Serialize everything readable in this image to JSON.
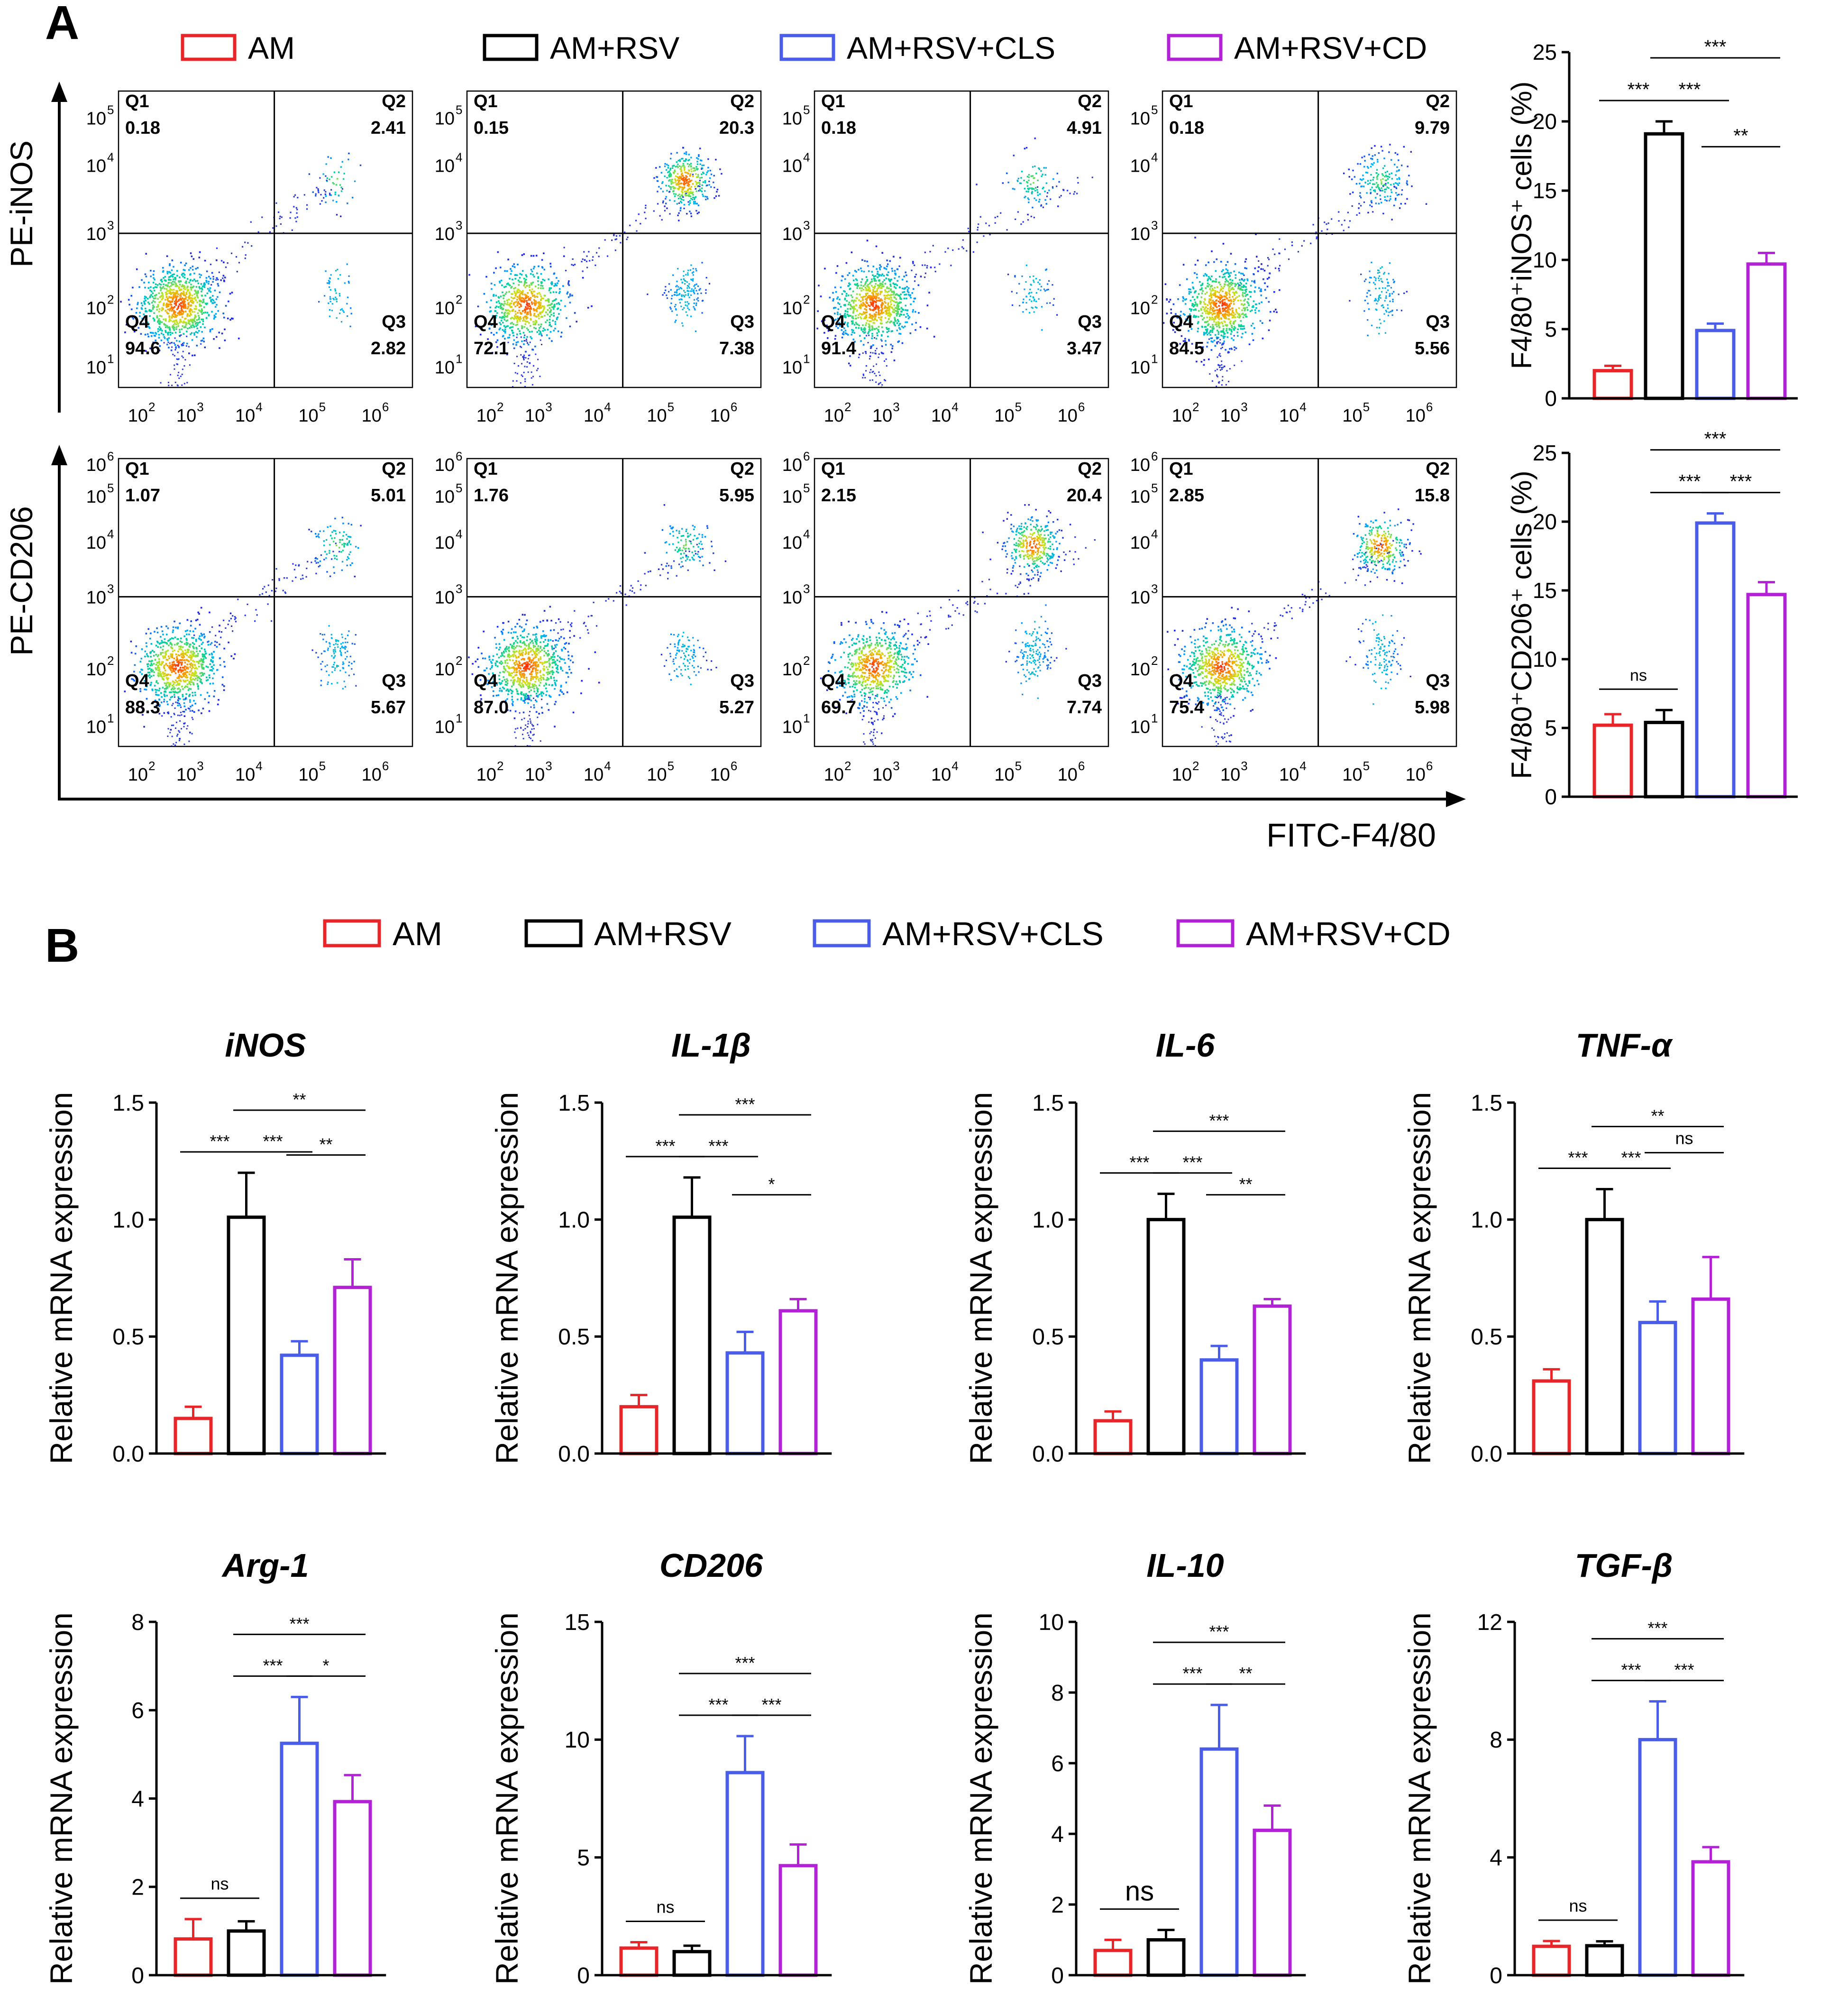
{
  "panel_a": {
    "label": "A",
    "y_axis_top": "PE-iNOS",
    "y_axis_bottom": "PE-CD206",
    "x_axis": "FITC-F4/80"
  },
  "panel_b": {
    "label": "B"
  },
  "legend": {
    "items": [
      {
        "label": "AM",
        "color": "#e8262a"
      },
      {
        "label": "AM+RSV",
        "color": "#000000"
      },
      {
        "label": "AM+RSV+CLS",
        "color": "#4a5de8"
      },
      {
        "label": "AM+RSV+CD",
        "color": "#b321d6"
      }
    ]
  },
  "flow": {
    "tick_exponents_x": [
      "2",
      "3",
      "4",
      "5",
      "6"
    ],
    "tick_exponents_y_top": [
      "1",
      "2",
      "3",
      "4",
      "5"
    ],
    "tick_exponents_y_bottom": [
      "1",
      "2",
      "3",
      "4",
      "5",
      "6"
    ],
    "rows": [
      {
        "name": "iNOS",
        "plots": [
          {
            "q1": "0.18",
            "q2": "2.41",
            "q3": "2.82",
            "q4": "94.6"
          },
          {
            "q1": "0.15",
            "q2": "20.3",
            "q3": "7.38",
            "q4": "72.1"
          },
          {
            "q1": "0.18",
            "q2": "4.91",
            "q3": "3.47",
            "q4": "91.4"
          },
          {
            "q1": "0.18",
            "q2": "9.79",
            "q3": "5.56",
            "q4": "84.5"
          }
        ]
      },
      {
        "name": "CD206",
        "plots": [
          {
            "q1": "1.07",
            "q2": "5.01",
            "q3": "5.67",
            "q4": "88.3"
          },
          {
            "q1": "1.76",
            "q2": "5.95",
            "q3": "5.27",
            "q4": "87.0"
          },
          {
            "q1": "2.15",
            "q2": "20.4",
            "q3": "7.74",
            "q4": "69.7"
          },
          {
            "q1": "2.85",
            "q2": "15.8",
            "q3": "5.98",
            "q4": "75.4"
          }
        ]
      }
    ],
    "quadrant_names": [
      "Q1",
      "Q2",
      "Q3",
      "Q4"
    ]
  },
  "chart_data": [
    {
      "id": "a-inos",
      "type": "bar",
      "title": "",
      "ylabel": "F4/80⁺iNOS⁺ cells (%)",
      "categories": [
        "AM",
        "AM+RSV",
        "AM+RSV+CLS",
        "AM+RSV+CD"
      ],
      "values": [
        2.0,
        19.1,
        4.9,
        9.7
      ],
      "errors": [
        0.35,
        0.9,
        0.5,
        0.8
      ],
      "ylim": [
        0,
        25
      ],
      "yticks": [
        "0",
        "5",
        "10",
        "15",
        "20",
        "25"
      ],
      "sig": [
        {
          "from": 0,
          "to": 1,
          "text": "***",
          "level": 0
        },
        {
          "from": 1,
          "to": 2,
          "text": "***",
          "level": 0
        },
        {
          "from": 1,
          "to": 3,
          "text": "***",
          "level": 1
        },
        {
          "from": 2,
          "to": 3,
          "text": "**",
          "level": 2
        }
      ]
    },
    {
      "id": "a-cd206",
      "type": "bar",
      "title": "",
      "ylabel": "F4/80⁺CD206⁺ cells (%)",
      "categories": [
        "AM",
        "AM+RSV",
        "AM+RSV+CLS",
        "AM+RSV+CD"
      ],
      "values": [
        5.2,
        5.4,
        19.9,
        14.7
      ],
      "errors": [
        0.8,
        0.9,
        0.7,
        0.9
      ],
      "ylim": [
        0,
        25
      ],
      "yticks": [
        "0",
        "5",
        "10",
        "15",
        "20",
        "25"
      ],
      "sig": [
        {
          "from": 0,
          "to": 1,
          "text": "ns",
          "level": 0
        },
        {
          "from": 1,
          "to": 2,
          "text": "***",
          "level": 0
        },
        {
          "from": 2,
          "to": 3,
          "text": "***",
          "level": 0
        },
        {
          "from": 1,
          "to": 3,
          "text": "***",
          "level": 1
        }
      ]
    },
    {
      "id": "b-inos",
      "type": "bar",
      "title": "iNOS",
      "ylabel": "Relative mRNA expression",
      "categories": [
        "AM",
        "AM+RSV",
        "AM+RSV+CLS",
        "AM+RSV+CD"
      ],
      "values": [
        0.15,
        1.01,
        0.42,
        0.71
      ],
      "errors": [
        0.05,
        0.19,
        0.06,
        0.12
      ],
      "ylim": [
        0,
        1.5
      ],
      "yticks": [
        "0.0",
        "0.5",
        "1.0",
        "1.5"
      ],
      "sig": [
        {
          "from": 0,
          "to": 1,
          "text": "***",
          "level": 0
        },
        {
          "from": 1,
          "to": 2,
          "text": "***",
          "level": 0
        },
        {
          "from": 1,
          "to": 3,
          "text": "**",
          "level": 1
        },
        {
          "from": 2,
          "to": 3,
          "text": "**",
          "level": 2
        }
      ]
    },
    {
      "id": "b-il1b",
      "type": "bar",
      "title": "IL-1β",
      "ylabel": "Relative mRNA expression",
      "categories": [
        "AM",
        "AM+RSV",
        "AM+RSV+CLS",
        "AM+RSV+CD"
      ],
      "values": [
        0.2,
        1.01,
        0.43,
        0.61
      ],
      "errors": [
        0.05,
        0.17,
        0.09,
        0.05
      ],
      "ylim": [
        0,
        1.5
      ],
      "yticks": [
        "0.0",
        "0.5",
        "1.0",
        "1.5"
      ],
      "sig": [
        {
          "from": 0,
          "to": 1,
          "text": "***",
          "level": 0
        },
        {
          "from": 1,
          "to": 2,
          "text": "***",
          "level": 0
        },
        {
          "from": 1,
          "to": 3,
          "text": "***",
          "level": 1
        },
        {
          "from": 2,
          "to": 3,
          "text": "*",
          "level": 2
        }
      ]
    },
    {
      "id": "b-il6",
      "type": "bar",
      "title": "IL-6",
      "ylabel": "Relative mRNA expression",
      "categories": [
        "AM",
        "AM+RSV",
        "AM+RSV+CLS",
        "AM+RSV+CD"
      ],
      "values": [
        0.14,
        1.0,
        0.4,
        0.63
      ],
      "errors": [
        0.04,
        0.11,
        0.06,
        0.03
      ],
      "ylim": [
        0,
        1.5
      ],
      "yticks": [
        "0.0",
        "0.5",
        "1.0",
        "1.5"
      ],
      "sig": [
        {
          "from": 0,
          "to": 1,
          "text": "***",
          "level": 0
        },
        {
          "from": 1,
          "to": 2,
          "text": "***",
          "level": 0
        },
        {
          "from": 1,
          "to": 3,
          "text": "***",
          "level": 1
        },
        {
          "from": 2,
          "to": 3,
          "text": "**",
          "level": 2
        }
      ]
    },
    {
      "id": "b-tnfa",
      "type": "bar",
      "title": "TNF-α",
      "ylabel": "Relative mRNA expression",
      "categories": [
        "AM",
        "AM+RSV",
        "AM+RSV+CLS",
        "AM+RSV+CD"
      ],
      "values": [
        0.31,
        1.0,
        0.56,
        0.66
      ],
      "errors": [
        0.05,
        0.13,
        0.09,
        0.18
      ],
      "ylim": [
        0,
        1.5
      ],
      "yticks": [
        "0.0",
        "0.5",
        "1.0",
        "1.5"
      ],
      "sig": [
        {
          "from": 0,
          "to": 1,
          "text": "***",
          "level": 0
        },
        {
          "from": 1,
          "to": 2,
          "text": "***",
          "level": 0
        },
        {
          "from": 1,
          "to": 3,
          "text": "**",
          "level": 1
        },
        {
          "from": 2,
          "to": 3,
          "text": "ns",
          "level": 2
        }
      ]
    },
    {
      "id": "b-arg1",
      "type": "bar",
      "title": "Arg-1",
      "ylabel": "Relative mRNA expression",
      "categories": [
        "AM",
        "AM+RSV",
        "AM+RSV+CLS",
        "AM+RSV+CD"
      ],
      "values": [
        0.82,
        1.0,
        5.25,
        3.93
      ],
      "errors": [
        0.45,
        0.22,
        1.05,
        0.6
      ],
      "ylim": [
        0,
        8
      ],
      "yticks": [
        "0",
        "2",
        "4",
        "6",
        "8"
      ],
      "sig": [
        {
          "from": 0,
          "to": 1,
          "text": "ns",
          "level": 0
        },
        {
          "from": 1,
          "to": 2,
          "text": "***",
          "level": 0
        },
        {
          "from": 2,
          "to": 3,
          "text": "*",
          "level": 0
        },
        {
          "from": 1,
          "to": 3,
          "text": "***",
          "level": 1
        }
      ]
    },
    {
      "id": "b-cd206",
      "type": "bar",
      "title": "CD206",
      "ylabel": "Relative mRNA expression",
      "categories": [
        "AM",
        "AM+RSV",
        "AM+RSV+CLS",
        "AM+RSV+CD"
      ],
      "values": [
        1.15,
        1.0,
        8.6,
        4.65
      ],
      "errors": [
        0.25,
        0.25,
        1.55,
        0.9
      ],
      "ylim": [
        0,
        15
      ],
      "yticks": [
        "0",
        "5",
        "10",
        "15"
      ],
      "sig": [
        {
          "from": 0,
          "to": 1,
          "text": "ns",
          "level": 0
        },
        {
          "from": 1,
          "to": 2,
          "text": "***",
          "level": 0
        },
        {
          "from": 2,
          "to": 3,
          "text": "***",
          "level": 0
        },
        {
          "from": 1,
          "to": 3,
          "text": "***",
          "level": 1
        }
      ]
    },
    {
      "id": "b-il10",
      "type": "bar",
      "title": "IL-10",
      "ylabel": "Relative mRNA expression",
      "categories": [
        "AM",
        "AM+RSV",
        "AM+RSV+CLS",
        "AM+RSV+CD"
      ],
      "values": [
        0.7,
        1.0,
        6.4,
        4.1
      ],
      "errors": [
        0.3,
        0.28,
        1.25,
        0.7
      ],
      "ylim": [
        0,
        10
      ],
      "yticks": [
        "0",
        "2",
        "4",
        "6",
        "8",
        "10"
      ],
      "sig": [
        {
          "from": 0,
          "to": 1,
          "text": "ns",
          "level": 0,
          "big": true
        },
        {
          "from": 1,
          "to": 2,
          "text": "***",
          "level": 0
        },
        {
          "from": 2,
          "to": 3,
          "text": "**",
          "level": 0
        },
        {
          "from": 1,
          "to": 3,
          "text": "***",
          "level": 1
        }
      ]
    },
    {
      "id": "b-tgfb",
      "type": "bar",
      "title": "TGF-β",
      "ylabel": "Relative mRNA expression",
      "categories": [
        "AM",
        "AM+RSV",
        "AM+RSV+CLS",
        "AM+RSV+CD"
      ],
      "values": [
        0.98,
        1.0,
        8.0,
        3.85
      ],
      "errors": [
        0.18,
        0.15,
        1.3,
        0.5
      ],
      "ylim": [
        0,
        12
      ],
      "yticks": [
        "0",
        "4",
        "8",
        "12"
      ],
      "sig": [
        {
          "from": 0,
          "to": 1,
          "text": "ns",
          "level": 0
        },
        {
          "from": 1,
          "to": 2,
          "text": "***",
          "level": 0
        },
        {
          "from": 2,
          "to": 3,
          "text": "***",
          "level": 0
        },
        {
          "from": 1,
          "to": 3,
          "text": "***",
          "level": 1
        }
      ]
    }
  ]
}
